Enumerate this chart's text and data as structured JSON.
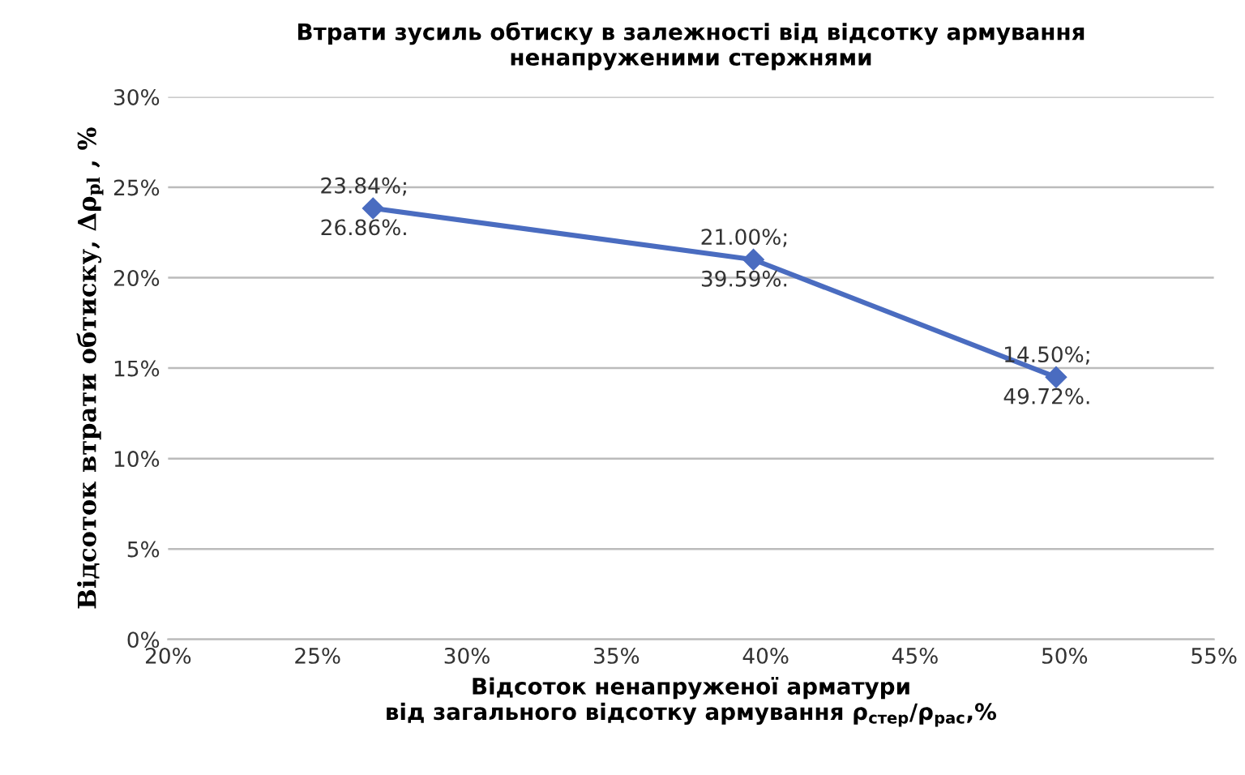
{
  "chart_data": {
    "type": "line",
    "title": "Втрати зусиль обтиску в залежності від відсотку армування\nненапруженими стержнями",
    "xlabel": "Відсоток ненапруженої арматури\nвід загального відсотку армування ρ$_{стер}$/ρ$_{рас}$,%",
    "ylabel": "Відсоток втрати обтиску, Δρ$_{pl}$ , %",
    "series": [
      {
        "color": "#4a6cc0",
        "x": [
          26.86,
          39.59,
          49.72
        ],
        "values": [
          23.84,
          21.0,
          14.5
        ],
        "value_labels": [
          "23.84%;\n26.86%.",
          "21.00%;\n39.59%.",
          "14.50%;\n49.72%."
        ]
      }
    ],
    "marker": "diamond",
    "line_style": "solid",
    "grid": "y",
    "legend": false,
    "xlim": [
      20,
      55
    ],
    "ylim": [
      0,
      30
    ],
    "xticks": [
      {
        "value": 20,
        "label": "20%"
      },
      {
        "value": 25,
        "label": "25%"
      },
      {
        "value": 30,
        "label": "30%"
      },
      {
        "value": 35,
        "label": "35%"
      },
      {
        "value": 40,
        "label": "40%"
      },
      {
        "value": 45,
        "label": "45%"
      },
      {
        "value": 50,
        "label": "50%"
      },
      {
        "value": 55,
        "label": "55%"
      }
    ],
    "yticks": [
      {
        "value": 0,
        "label": "0%"
      },
      {
        "value": 5,
        "label": "5%"
      },
      {
        "value": 10,
        "label": "10%"
      },
      {
        "value": 15,
        "label": "15%"
      },
      {
        "value": 20,
        "label": "20%"
      },
      {
        "value": 25,
        "label": "25%"
      },
      {
        "value": 30,
        "label": "30%"
      }
    ]
  }
}
